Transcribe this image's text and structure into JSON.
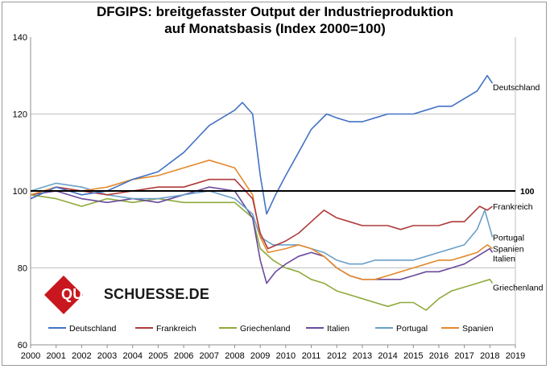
{
  "title_line1": "DFGIPS: breitgefasster Output der Industrieproduktion",
  "title_line2": "auf Monatsbasis (Index 2000=100)",
  "logo": {
    "text_a": "QUER",
    "text_b": "SCHUESSE.DE"
  },
  "chart_data": {
    "type": "line",
    "title": "DFGIPS: breitgefasster Output der Industrieproduktion auf Monatsbasis (Index 2000=100)",
    "x_ticks": [
      "2000",
      "2001",
      "2002",
      "2003",
      "2004",
      "2005",
      "2006",
      "2007",
      "2008",
      "2009",
      "2010",
      "2011",
      "2012",
      "2013",
      "2014",
      "2015",
      "2016",
      "2017",
      "2018",
      "2019"
    ],
    "y_ticks": [
      "60",
      "80",
      "100",
      "120",
      "140"
    ],
    "xlim": [
      2000,
      2019
    ],
    "ylim": [
      60,
      140
    ],
    "reference_line": {
      "value": 100,
      "label": "100"
    },
    "legend_position": "bottom",
    "series": [
      {
        "name": "Deutschland",
        "color": "#4472c4",
        "points": [
          [
            2000,
            98
          ],
          [
            2001,
            101
          ],
          [
            2002,
            99
          ],
          [
            2003,
            100
          ],
          [
            2004,
            103
          ],
          [
            2005,
            105
          ],
          [
            2006,
            110
          ],
          [
            2007,
            117
          ],
          [
            2008.0,
            121
          ],
          [
            2008.3,
            123
          ],
          [
            2008.7,
            120
          ],
          [
            2009.0,
            104
          ],
          [
            2009.25,
            94
          ],
          [
            2009.6,
            99
          ],
          [
            2010,
            104
          ],
          [
            2010.5,
            110
          ],
          [
            2011,
            116
          ],
          [
            2011.6,
            120
          ],
          [
            2012,
            119
          ],
          [
            2012.5,
            118
          ],
          [
            2013,
            118
          ],
          [
            2013.5,
            119
          ],
          [
            2014,
            120
          ],
          [
            2014.5,
            120
          ],
          [
            2015,
            120
          ],
          [
            2015.5,
            121
          ],
          [
            2016,
            122
          ],
          [
            2016.5,
            122
          ],
          [
            2017,
            124
          ],
          [
            2017.5,
            126
          ],
          [
            2017.9,
            130
          ],
          [
            2018.1,
            128
          ]
        ]
      },
      {
        "name": "Frankreich",
        "color": "#b03a3a",
        "points": [
          [
            2000,
            98
          ],
          [
            2001,
            101
          ],
          [
            2002,
            100
          ],
          [
            2003,
            99
          ],
          [
            2004,
            100
          ],
          [
            2005,
            101
          ],
          [
            2006,
            101
          ],
          [
            2007,
            103
          ],
          [
            2008,
            103
          ],
          [
            2008.7,
            98
          ],
          [
            2009.0,
            89
          ],
          [
            2009.3,
            85
          ],
          [
            2010,
            87
          ],
          [
            2010.5,
            89
          ],
          [
            2011,
            92
          ],
          [
            2011.5,
            95
          ],
          [
            2012,
            93
          ],
          [
            2012.5,
            92
          ],
          [
            2013,
            91
          ],
          [
            2013.5,
            91
          ],
          [
            2014,
            91
          ],
          [
            2014.5,
            90
          ],
          [
            2015,
            91
          ],
          [
            2015.5,
            91
          ],
          [
            2016,
            91
          ],
          [
            2016.5,
            92
          ],
          [
            2017,
            92
          ],
          [
            2017.6,
            96
          ],
          [
            2017.9,
            95
          ],
          [
            2018.1,
            96
          ]
        ]
      },
      {
        "name": "Griechenland",
        "color": "#8faa3c",
        "points": [
          [
            2000,
            99
          ],
          [
            2001,
            98
          ],
          [
            2002,
            96
          ],
          [
            2003,
            98
          ],
          [
            2004,
            97
          ],
          [
            2005,
            98
          ],
          [
            2006,
            97
          ],
          [
            2007,
            97
          ],
          [
            2008,
            97
          ],
          [
            2008.7,
            93
          ],
          [
            2009,
            85
          ],
          [
            2009.5,
            82
          ],
          [
            2010,
            80
          ],
          [
            2010.5,
            79
          ],
          [
            2011,
            77
          ],
          [
            2011.5,
            76
          ],
          [
            2012,
            74
          ],
          [
            2012.5,
            73
          ],
          [
            2013,
            72
          ],
          [
            2013.5,
            71
          ],
          [
            2014,
            70
          ],
          [
            2014.5,
            71
          ],
          [
            2015,
            71
          ],
          [
            2015.5,
            69
          ],
          [
            2016,
            72
          ],
          [
            2016.5,
            74
          ],
          [
            2017,
            75
          ],
          [
            2017.5,
            76
          ],
          [
            2018,
            77
          ],
          [
            2018.1,
            76
          ]
        ]
      },
      {
        "name": "Italien",
        "color": "#6a4a9a",
        "points": [
          [
            2000,
            99
          ],
          [
            2001,
            100
          ],
          [
            2002,
            98
          ],
          [
            2003,
            97
          ],
          [
            2004,
            98
          ],
          [
            2005,
            97
          ],
          [
            2006,
            99
          ],
          [
            2007,
            101
          ],
          [
            2008,
            100
          ],
          [
            2008.7,
            93
          ],
          [
            2009,
            82
          ],
          [
            2009.25,
            76
          ],
          [
            2009.6,
            79
          ],
          [
            2010,
            81
          ],
          [
            2010.5,
            83
          ],
          [
            2011,
            84
          ],
          [
            2011.5,
            83
          ],
          [
            2012,
            80
          ],
          [
            2012.5,
            78
          ],
          [
            2013,
            77
          ],
          [
            2013.5,
            77
          ],
          [
            2014,
            77
          ],
          [
            2014.5,
            77
          ],
          [
            2015,
            78
          ],
          [
            2015.5,
            79
          ],
          [
            2016,
            79
          ],
          [
            2016.5,
            80
          ],
          [
            2017,
            81
          ],
          [
            2017.5,
            83
          ],
          [
            2018,
            85
          ],
          [
            2018.1,
            84
          ]
        ]
      },
      {
        "name": "Portugal",
        "color": "#6aa0c8",
        "points": [
          [
            2000,
            100
          ],
          [
            2001,
            102
          ],
          [
            2002,
            101
          ],
          [
            2003,
            99
          ],
          [
            2004,
            98
          ],
          [
            2005,
            98
          ],
          [
            2006,
            99
          ],
          [
            2007,
            100
          ],
          [
            2008,
            98
          ],
          [
            2008.7,
            94
          ],
          [
            2009,
            88
          ],
          [
            2009.5,
            86
          ],
          [
            2010,
            86
          ],
          [
            2010.5,
            86
          ],
          [
            2011,
            85
          ],
          [
            2011.5,
            84
          ],
          [
            2012,
            82
          ],
          [
            2012.5,
            81
          ],
          [
            2013,
            81
          ],
          [
            2013.5,
            82
          ],
          [
            2014,
            82
          ],
          [
            2014.5,
            82
          ],
          [
            2015,
            82
          ],
          [
            2015.5,
            83
          ],
          [
            2016,
            84
          ],
          [
            2016.5,
            85
          ],
          [
            2017,
            86
          ],
          [
            2017.5,
            90
          ],
          [
            2017.8,
            95
          ],
          [
            2018.1,
            88
          ]
        ]
      },
      {
        "name": "Spanien",
        "color": "#e38a2d",
        "points": [
          [
            2000,
            99
          ],
          [
            2001,
            101
          ],
          [
            2002,
            100
          ],
          [
            2003,
            101
          ],
          [
            2004,
            103
          ],
          [
            2005,
            104
          ],
          [
            2006,
            106
          ],
          [
            2007,
            108
          ],
          [
            2008,
            106
          ],
          [
            2008.7,
            99
          ],
          [
            2009,
            88
          ],
          [
            2009.3,
            84
          ],
          [
            2010,
            85
          ],
          [
            2010.5,
            86
          ],
          [
            2011,
            85
          ],
          [
            2011.5,
            83
          ],
          [
            2012,
            80
          ],
          [
            2012.5,
            78
          ],
          [
            2013,
            77
          ],
          [
            2013.5,
            77
          ],
          [
            2014,
            78
          ],
          [
            2014.5,
            79
          ],
          [
            2015,
            80
          ],
          [
            2015.5,
            81
          ],
          [
            2016,
            82
          ],
          [
            2016.5,
            82
          ],
          [
            2017,
            83
          ],
          [
            2017.5,
            84
          ],
          [
            2017.9,
            86
          ],
          [
            2018.1,
            85
          ]
        ]
      }
    ],
    "end_labels": [
      {
        "series": "Deutschland",
        "text": "Deutschland",
        "value": 127
      },
      {
        "series": "Frankreich",
        "text": "Frankreich",
        "value": 96
      },
      {
        "series": "Portugal",
        "text": "Portugal",
        "value": 88
      },
      {
        "series": "Spanien",
        "text": "Spanien",
        "value": 85
      },
      {
        "series": "Italien",
        "text": "Italien",
        "value": 82.5
      },
      {
        "series": "Griechenland",
        "text": "Griechenland",
        "value": 75
      }
    ]
  }
}
